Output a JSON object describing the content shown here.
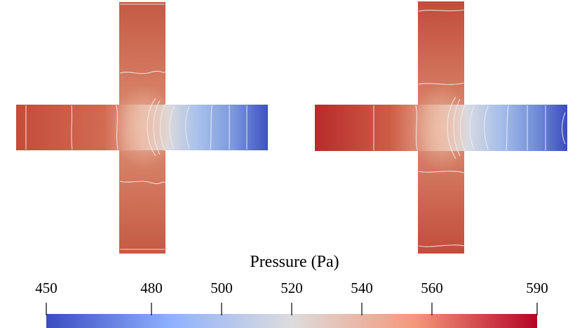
{
  "colorbar": {
    "title": "Pressure (Pa)",
    "ticks": [
      {
        "label": "450",
        "value": 450
      },
      {
        "label": "480",
        "value": 480
      },
      {
        "label": "500",
        "value": 500
      },
      {
        "label": "520",
        "value": 520
      },
      {
        "label": "540",
        "value": 540
      },
      {
        "label": "560",
        "value": 560
      },
      {
        "label": "590",
        "value": 590
      }
    ],
    "min": 450,
    "max": 590,
    "colors": [
      "#3b4cc0",
      "#8db0fe",
      "#dddcdc",
      "#f4987a",
      "#b40426"
    ]
  },
  "colors": {
    "background": "#ffffff",
    "contour": "#f2eef0",
    "tick": "#000000"
  }
}
